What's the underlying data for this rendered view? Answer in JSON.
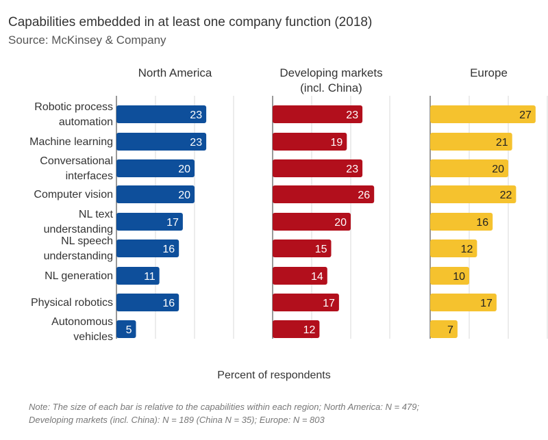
{
  "chart_data": {
    "type": "bar",
    "title": "Capabilities embedded in at least one company function (2018)",
    "subtitle": "Source: McKinsey & Company",
    "xlabel": "Percent of respondents",
    "note_lines": [
      "Note: The size of each bar is relative to the capabilities within each region; North America: N = 479;",
      "Developing markets (incl. China): N = 189 (China N = 35); Europe: N = 803"
    ],
    "categories": [
      [
        "Robotic process",
        "automation"
      ],
      [
        "Machine learning"
      ],
      [
        "Conversational",
        "interfaces"
      ],
      [
        "Computer vision"
      ],
      [
        "NL text",
        "understanding"
      ],
      [
        "NL speech",
        "understanding"
      ],
      [
        "NL generation"
      ],
      [
        "Physical robotics"
      ],
      [
        "Autonomous",
        "vehicles"
      ]
    ],
    "xlim": [
      0,
      30
    ],
    "gridlines": [
      0,
      10,
      20,
      30
    ],
    "series": [
      {
        "name": [
          "North America"
        ],
        "color": "#0e4f9b",
        "label_color": "#ffffff",
        "values": [
          23,
          23,
          20,
          20,
          17,
          16,
          11,
          16,
          5
        ]
      },
      {
        "name": [
          "Developing markets",
          "(incl. China)"
        ],
        "color": "#b20f1c",
        "label_color": "#ffffff",
        "values": [
          23,
          19,
          23,
          26,
          20,
          15,
          14,
          17,
          12
        ]
      },
      {
        "name": [
          "Europe"
        ],
        "color": "#f5c22e",
        "label_color": "#222222",
        "values": [
          27,
          21,
          20,
          22,
          16,
          12,
          10,
          17,
          7
        ]
      }
    ]
  }
}
